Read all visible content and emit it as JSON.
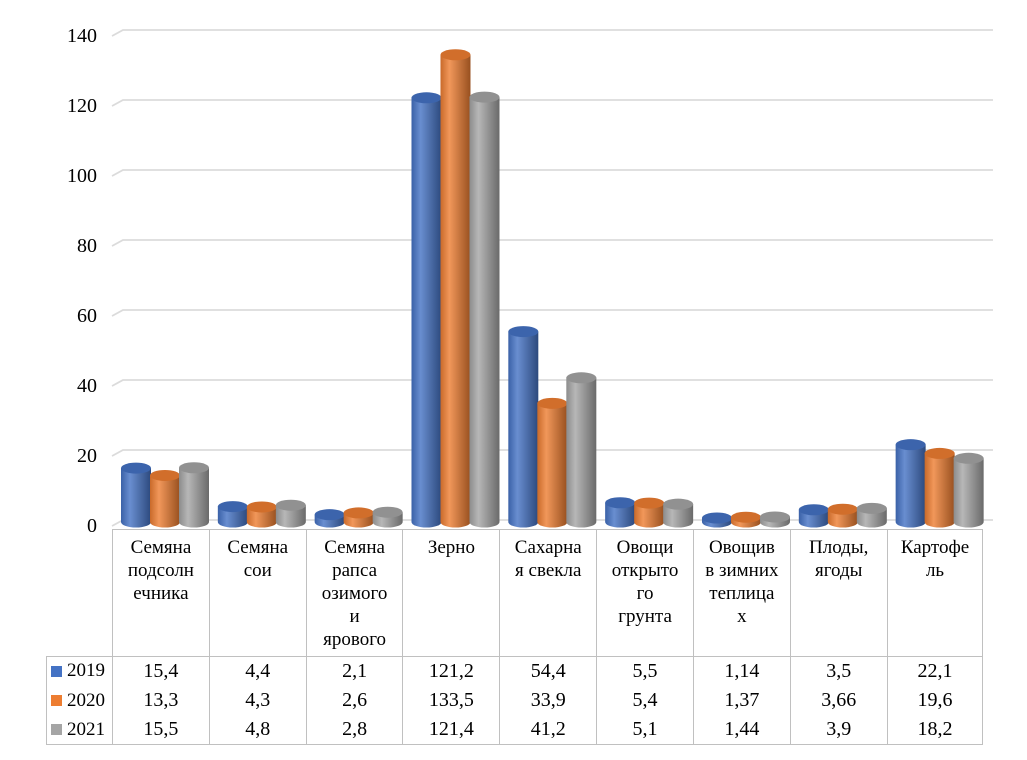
{
  "chart_data": {
    "type": "bar",
    "style": "3d-cylinder",
    "title": "",
    "xlabel": "",
    "ylabel": "",
    "ylim": [
      0,
      140
    ],
    "y_ticks": [
      0,
      20,
      40,
      60,
      80,
      100,
      120,
      140
    ],
    "y_tick_labels": [
      "0",
      "20",
      "40",
      "60",
      "80",
      "100",
      "120",
      "140"
    ],
    "grid": true,
    "legend_position": "table-left-column",
    "categories": [
      "Семяна подсолнечника",
      "Семяна сои",
      "Семяна рапса озимого и ярового",
      "Зерно",
      "Сахарная свекла",
      "Овощи открытого грунта",
      "Овощив в зимних теплицах",
      "Плоды, ягоды",
      "Картофель"
    ],
    "category_label_lines": [
      [
        "Семяна",
        "подсолн",
        "ечника"
      ],
      [
        "Семяна",
        "сои"
      ],
      [
        "Семяна",
        "рапса",
        "озимого",
        "и",
        "ярового"
      ],
      [
        "Зерно"
      ],
      [
        "Сахарна",
        "я свекла"
      ],
      [
        "Овощи",
        "открыто",
        "го",
        "грунта"
      ],
      [
        "Овощив",
        "в зимних",
        "теплица",
        "х"
      ],
      [
        "Плоды,",
        "ягоды"
      ],
      [
        "Картофе",
        "ль"
      ]
    ],
    "series": [
      {
        "name": "2019",
        "color": "#4472C4",
        "values": [
          15.4,
          4.4,
          2.1,
          121.2,
          54.4,
          5.5,
          1.14,
          3.5,
          22.1
        ],
        "display_values": [
          "15,4",
          "4,4",
          "2,1",
          "121,2",
          "54,4",
          "5,5",
          "1,14",
          "3,5",
          "22,1"
        ]
      },
      {
        "name": "2020",
        "color": "#ED7D31",
        "values": [
          13.3,
          4.3,
          2.6,
          133.5,
          33.9,
          5.4,
          1.37,
          3.66,
          19.6
        ],
        "display_values": [
          "13,3",
          "4,3",
          "2,6",
          "133,5",
          "33,9",
          "5,4",
          "1,37",
          "3,66",
          "19,6"
        ]
      },
      {
        "name": "2021",
        "color": "#A5A5A5",
        "values": [
          15.5,
          4.8,
          2.8,
          121.4,
          41.2,
          5.1,
          1.44,
          3.9,
          18.2
        ],
        "display_values": [
          "15,5",
          "4,8",
          "2,8",
          "121,4",
          "41,2",
          "5,1",
          "1,44",
          "3,9",
          "18,2"
        ]
      }
    ]
  },
  "colors": {
    "series_2019": "#4472C4",
    "series_2020": "#ED7D31",
    "series_2021": "#A5A5A5",
    "gridline": "#DBDBDB",
    "table_border": "#C0C0C0",
    "background": "#FFFFFF",
    "text": "#000000"
  }
}
